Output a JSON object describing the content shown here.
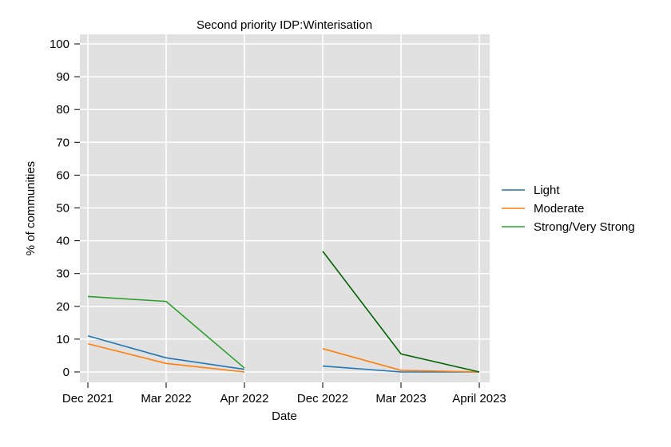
{
  "chart_data": {
    "type": "line",
    "title": "Second priority IDP:Winterisation",
    "xlabel": "Date",
    "ylabel": "% of communities",
    "categories": [
      "Dec 2021",
      "Mar 2022",
      "Apr 2022",
      "Dec 2022",
      "Mar 2023",
      "April 2023"
    ],
    "ylim": [
      0,
      100
    ],
    "yticks": [
      0,
      10,
      20,
      30,
      40,
      50,
      60,
      70,
      80,
      90,
      100
    ],
    "grid": true,
    "legend_position": "right",
    "series": [
      {
        "name": "Light",
        "color": "#1f77b4",
        "segments": [
          {
            "x": [
              "Dec 2021",
              "Mar 2022",
              "Apr 2022"
            ],
            "y": [
              11,
              4.3,
              0.8
            ]
          },
          {
            "x": [
              "Dec 2022",
              "Mar 2023",
              "April 2023"
            ],
            "y": [
              1.8,
              0,
              0
            ]
          }
        ]
      },
      {
        "name": "Moderate",
        "color": "#ff7f0e",
        "segments": [
          {
            "x": [
              "Dec 2021",
              "Mar 2022",
              "Apr 2022"
            ],
            "y": [
              8.6,
              2.6,
              0
            ]
          },
          {
            "x": [
              "Dec 2022",
              "Mar 2023",
              "April 2023"
            ],
            "y": [
              7.1,
              0.5,
              0
            ]
          }
        ]
      },
      {
        "name": "Strong/Very Strong",
        "color": "#2ca02c",
        "segments": [
          {
            "x": [
              "Dec 2021",
              "Mar 2022",
              "Apr 2022"
            ],
            "y": [
              23,
              21.5,
              1.2
            ],
            "color": "#2ca02c"
          },
          {
            "x": [
              "Dec 2022",
              "Mar 2023",
              "April 2023"
            ],
            "y": [
              36.8,
              5.5,
              0
            ],
            "color": "#006400"
          }
        ]
      }
    ]
  }
}
